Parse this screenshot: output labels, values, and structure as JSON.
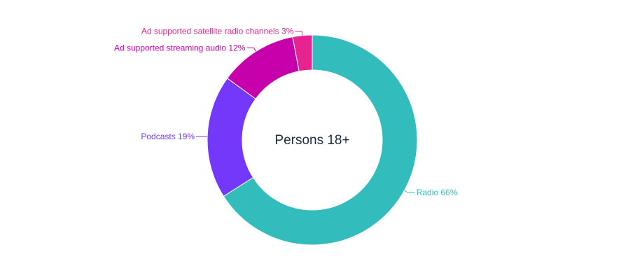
{
  "chart_data": {
    "type": "pie",
    "center_label": "Persons 18+",
    "slices": [
      {
        "label": "Radio 66%",
        "value": 66,
        "color": "#33bcbc"
      },
      {
        "label": "Podcasts 19%",
        "value": 19,
        "color": "#7338fa"
      },
      {
        "label": "Ad supported streaming audio 12%",
        "value": 12,
        "color": "#c600ab"
      },
      {
        "label": "Ad supported satellite radio channels 3%",
        "value": 3,
        "color": "#e6248f"
      }
    ]
  }
}
